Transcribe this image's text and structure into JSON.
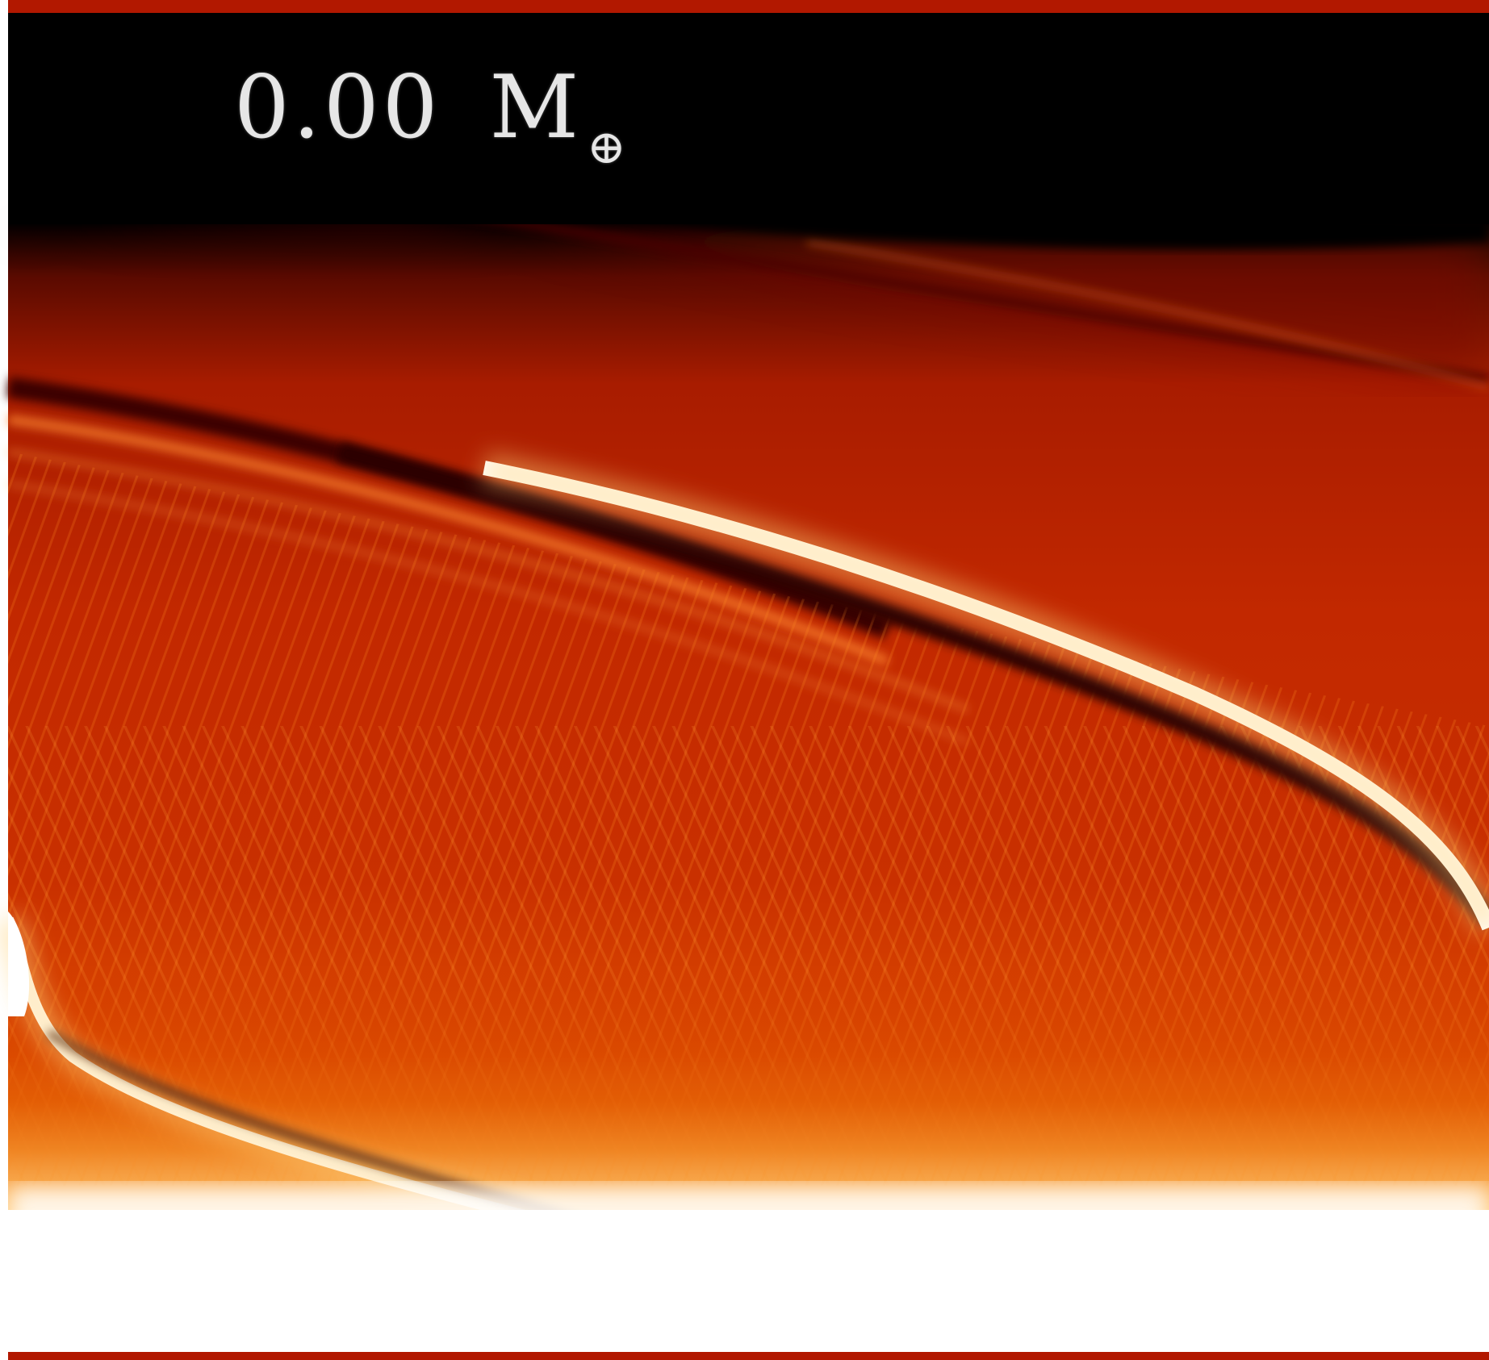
{
  "simulation_frame": {
    "mass_value": "0.00",
    "mass_unit": "M",
    "mass_unit_subscript": "⊕",
    "colormap": [
      "#000000",
      "#7a0f00",
      "#c22800",
      "#e85a00",
      "#ffb040",
      "#ffffff"
    ]
  }
}
